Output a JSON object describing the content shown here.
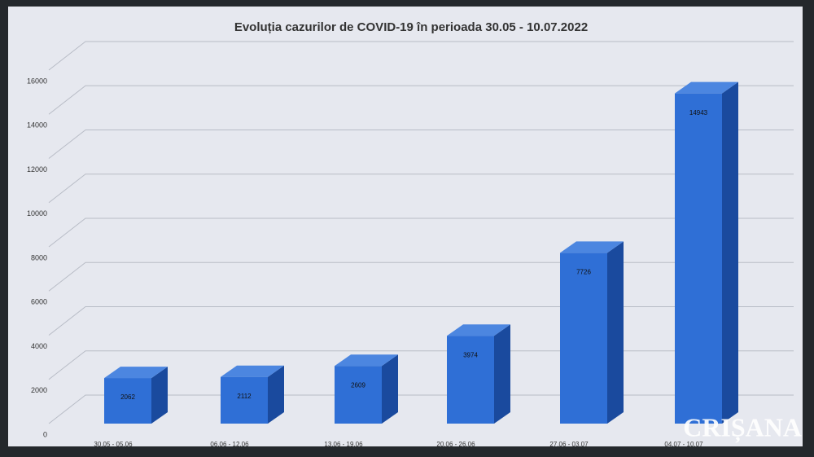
{
  "chart_data": {
    "type": "bar3d",
    "title": "Evoluția cazurilor de COVID-19 în perioada 30.05 - 10.07.2022",
    "categories": [
      "30.05 - 05.06",
      "06.06 - 12.06",
      "13.06 - 19.06",
      "20.06 - 26.06",
      "27.06 - 03.07",
      "04.07 - 10.07"
    ],
    "values": [
      2062,
      2112,
      2609,
      3974,
      7726,
      14943
    ],
    "color": "#2f6fd6",
    "ylim": [
      0,
      16000
    ],
    "yticks": [
      0,
      2000,
      4000,
      6000,
      8000,
      10000,
      12000,
      14000,
      16000
    ],
    "grid": true
  },
  "watermark": "CRIȘANA"
}
